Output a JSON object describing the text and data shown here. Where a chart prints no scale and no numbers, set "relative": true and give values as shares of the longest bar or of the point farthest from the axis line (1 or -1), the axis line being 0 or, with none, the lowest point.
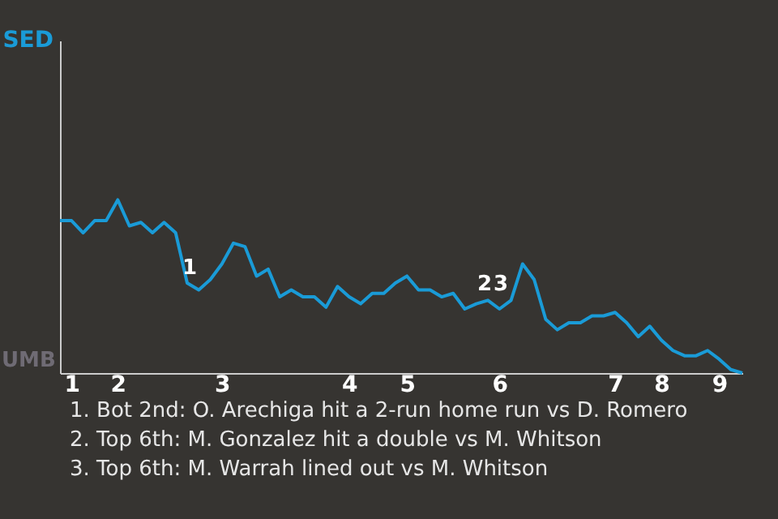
{
  "chart_data": {
    "type": "line",
    "relative": true,
    "categories": [
      null,
      "1",
      null,
      null,
      null,
      "2",
      null,
      null,
      null,
      null,
      null,
      null,
      null,
      null,
      "3",
      null,
      null,
      null,
      null,
      null,
      null,
      null,
      null,
      null,
      null,
      "4",
      null,
      null,
      null,
      null,
      "5",
      null,
      null,
      null,
      null,
      null,
      null,
      null,
      "6",
      null,
      null,
      null,
      null,
      null,
      null,
      null,
      null,
      null,
      "7",
      null,
      null,
      null,
      "8",
      null,
      null,
      null,
      null,
      "9",
      null,
      null
    ],
    "series": [
      {
        "color": "#1a9bd7",
        "values": [
          0.88,
          0.88,
          0.81,
          0.88,
          0.88,
          1,
          0.85,
          0.87,
          0.81,
          0.87,
          0.81,
          0.52,
          0.48,
          0.54,
          0.63,
          0.75,
          0.73,
          0.56,
          0.6,
          0.44,
          0.48,
          0.44,
          0.44,
          0.38,
          0.5,
          0.44,
          0.4,
          0.46,
          0.46,
          0.52,
          0.56,
          0.48,
          0.48,
          0.44,
          0.46,
          0.37,
          0.4,
          0.42,
          0.37,
          0.42,
          0.63,
          0.54,
          0.31,
          0.25,
          0.29,
          0.29,
          0.33,
          0.33,
          0.35,
          0.29,
          0.21,
          0.27,
          0.19,
          0.13,
          0.1,
          0.1,
          0.13,
          0.08,
          0.02,
          0
        ]
      }
    ],
    "marker": "none",
    "annotations": [
      "SED",
      "1",
      "2",
      "3",
      "UMB",
      "1. Bot 2nd: O. Arechiga hit a 2-run home run vs D. Romero",
      "2. Top 6th: M. Gonzalez hit a double vs M. Whitson",
      "3. Top 6th: M. Warrah lined out vs M. Whitson"
    ]
  }
}
